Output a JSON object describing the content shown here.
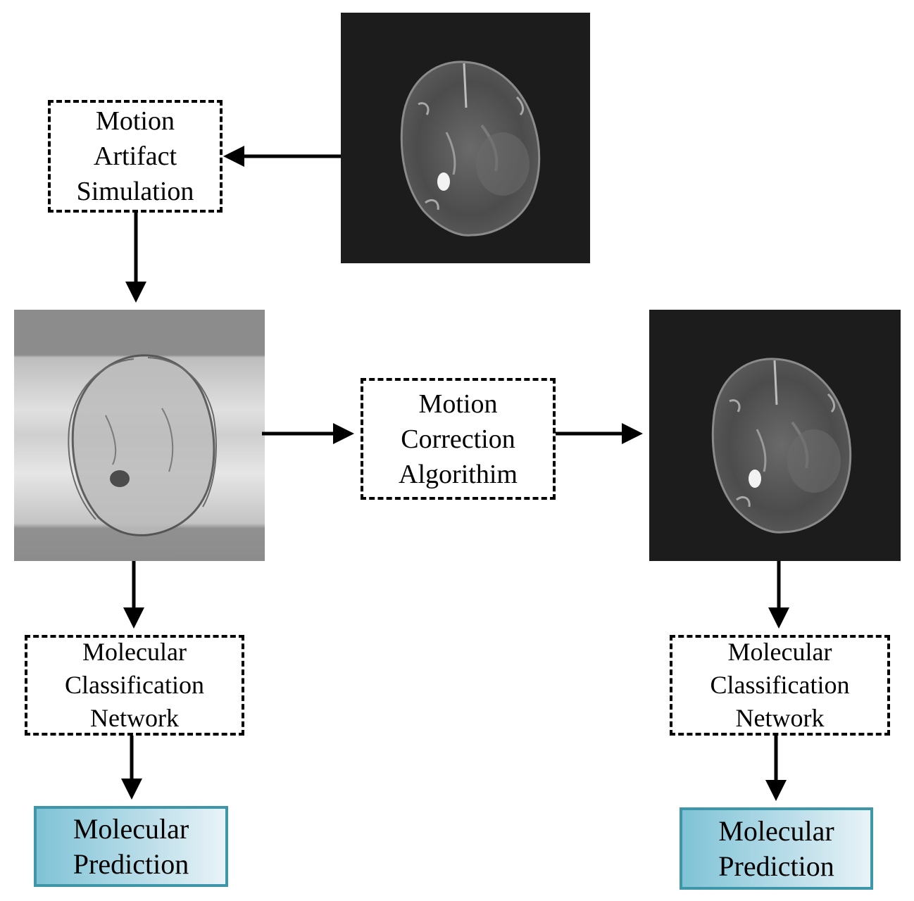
{
  "simulation_box": {
    "lines": [
      "Motion",
      "Artifact",
      "Simulation"
    ]
  },
  "correction_box": {
    "lines": [
      "Motion",
      "Correction",
      "Algorithim"
    ]
  },
  "classifier_left": {
    "lines": [
      "Molecular",
      "Classification",
      "Network"
    ]
  },
  "classifier_right": {
    "lines": [
      "Molecular",
      "Classification",
      "Network"
    ]
  },
  "prediction_left": {
    "lines": [
      "Molecular",
      "Prediction"
    ]
  },
  "prediction_right": {
    "lines": [
      "Molecular",
      "Prediction"
    ]
  },
  "colors": {
    "scan_background": "#1c1c1c",
    "prediction_border": "#3d97a8",
    "prediction_fill": "#a9d6e5"
  }
}
